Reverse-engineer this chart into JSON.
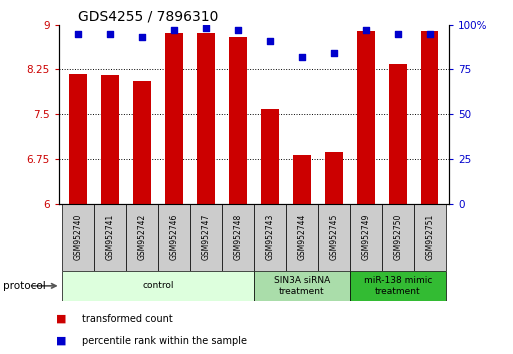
{
  "title": "GDS4255 / 7896310",
  "samples": [
    "GSM952740",
    "GSM952741",
    "GSM952742",
    "GSM952746",
    "GSM952747",
    "GSM952748",
    "GSM952743",
    "GSM952744",
    "GSM952745",
    "GSM952749",
    "GSM952750",
    "GSM952751"
  ],
  "bar_values": [
    8.17,
    8.15,
    8.05,
    8.87,
    8.87,
    8.8,
    7.58,
    6.82,
    6.87,
    8.9,
    8.35,
    8.9
  ],
  "percentile_values": [
    95,
    95,
    93,
    97,
    98,
    97,
    91,
    82,
    84,
    97,
    95,
    95
  ],
  "bar_color": "#cc0000",
  "dot_color": "#0000cc",
  "ylim_left": [
    6,
    9
  ],
  "ylim_right": [
    0,
    100
  ],
  "yticks_left": [
    6,
    6.75,
    7.5,
    8.25,
    9
  ],
  "ytick_labels_left": [
    "6",
    "6.75",
    "7.5",
    "8.25",
    "9"
  ],
  "yticks_right": [
    0,
    25,
    50,
    75,
    100
  ],
  "ytick_labels_right": [
    "0",
    "25",
    "50",
    "75",
    "100%"
  ],
  "groups": [
    {
      "label": "control",
      "start": 0,
      "end": 6,
      "color": "#ddffdd"
    },
    {
      "label": "SIN3A siRNA\ntreatment",
      "start": 6,
      "end": 9,
      "color": "#aaddaa"
    },
    {
      "label": "miR-138 mimic\ntreatment",
      "start": 9,
      "end": 12,
      "color": "#33bb33"
    }
  ],
  "protocol_label": "protocol",
  "legend_bar_label": "transformed count",
  "legend_dot_label": "percentile rank within the sample",
  "background_color": "#ffffff",
  "tick_label_color_left": "#cc0000",
  "tick_label_color_right": "#0000cc",
  "label_box_color": "#cccccc",
  "title_fontsize": 10,
  "bar_width": 0.55
}
